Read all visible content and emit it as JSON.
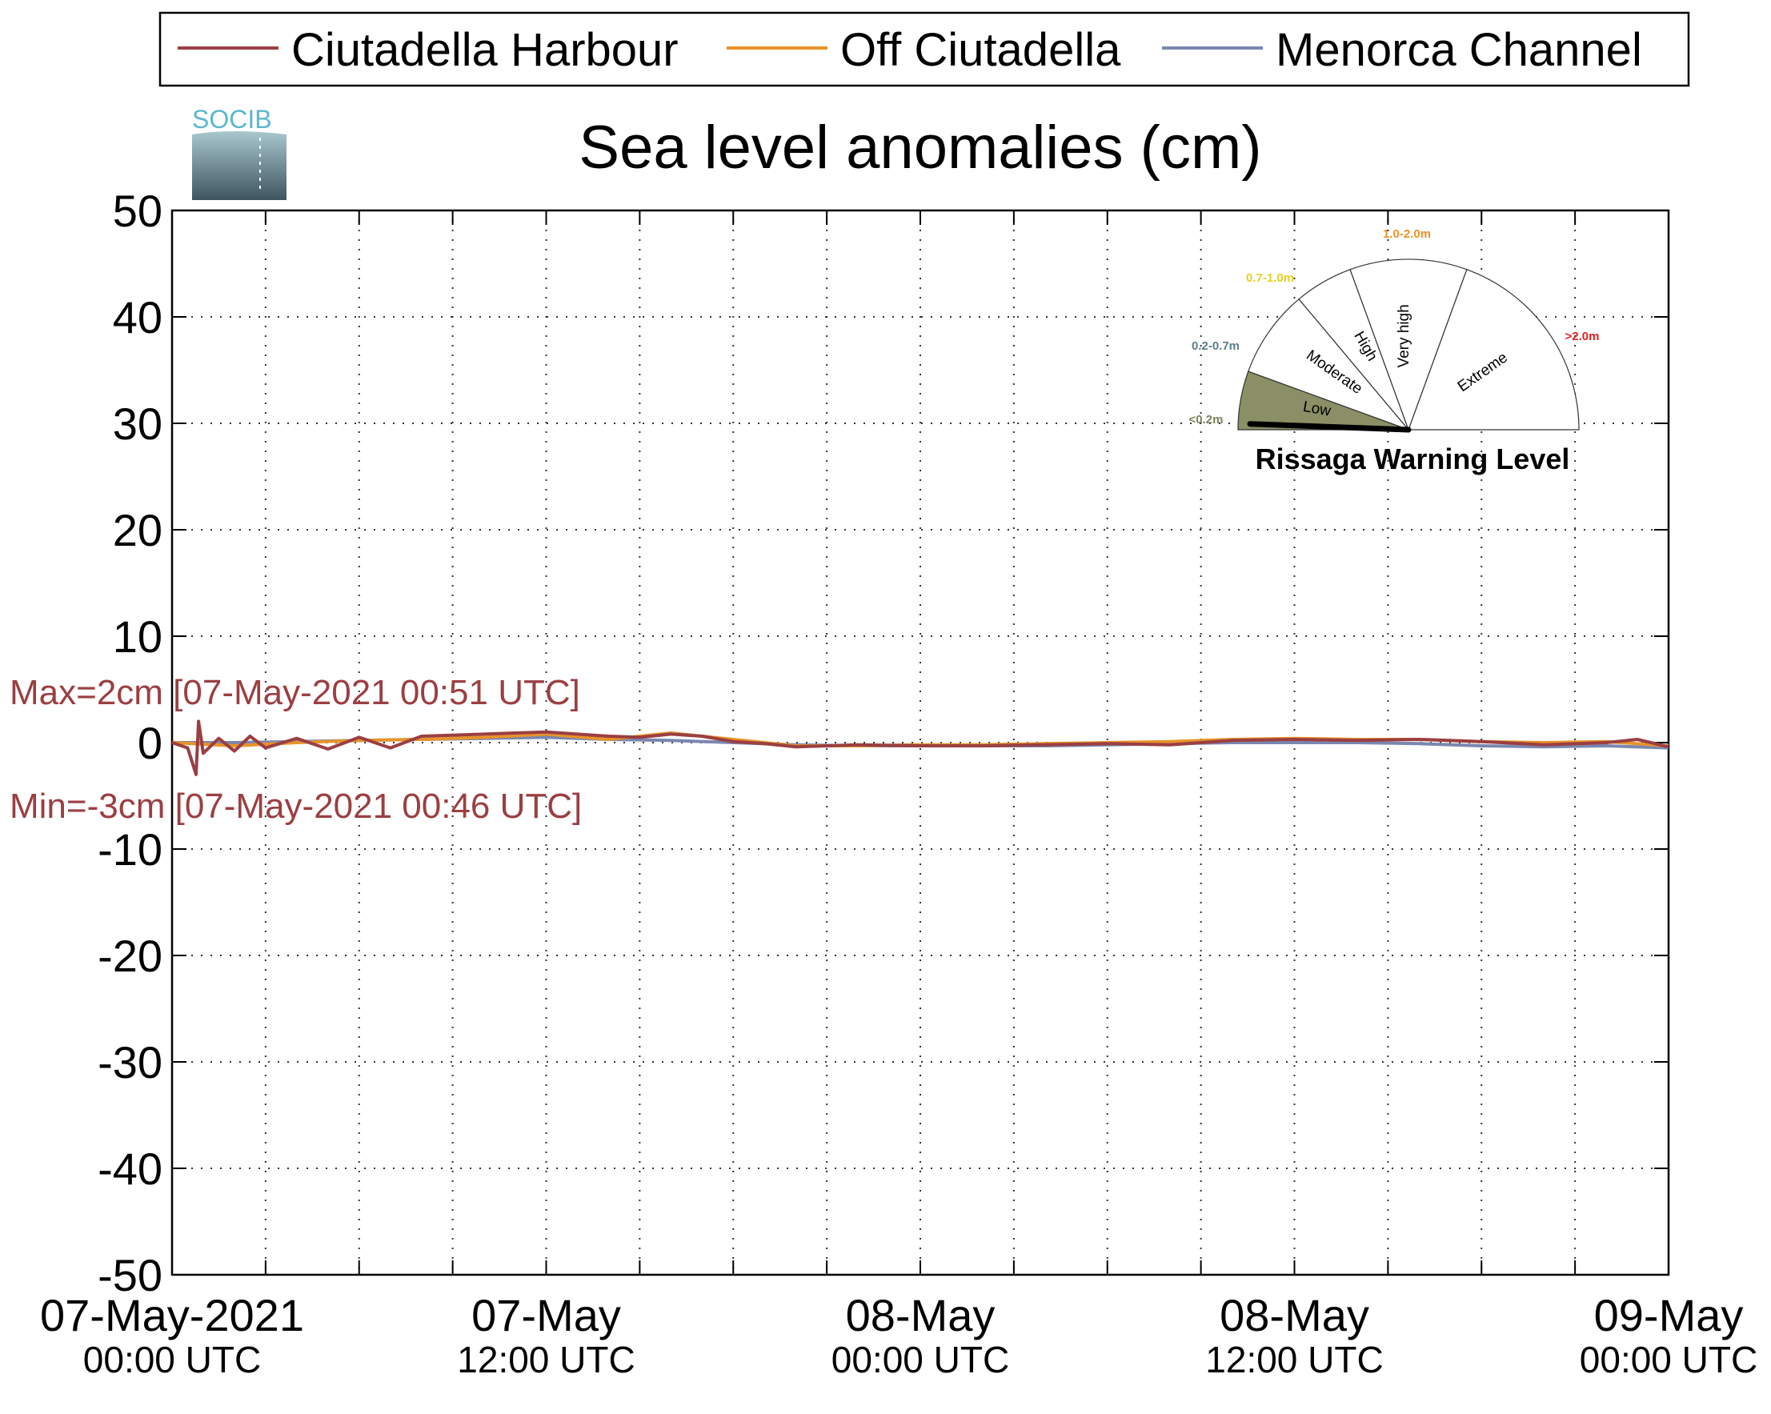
{
  "chart_data": {
    "type": "line",
    "title": "Sea level anomalies (cm)",
    "xlabel": "",
    "ylabel": "",
    "ylim": [
      -50,
      50
    ],
    "yticks": [
      50,
      40,
      30,
      20,
      10,
      0,
      -10,
      -20,
      -30,
      -40,
      -50
    ],
    "xlim": [
      "2021-05-07T00:00Z",
      "2021-05-09T00:00Z"
    ],
    "xticks": [
      {
        "t": "2021-05-07T00:00Z",
        "label": "07-May-2021",
        "sub": "00:00 UTC"
      },
      {
        "t": "2021-05-07T12:00Z",
        "label": "07-May",
        "sub": "12:00 UTC"
      },
      {
        "t": "2021-05-08T00:00Z",
        "label": "08-May",
        "sub": "00:00 UTC"
      },
      {
        "t": "2021-05-08T12:00Z",
        "label": "08-May",
        "sub": "12:00 UTC"
      },
      {
        "t": "2021-05-09T00:00Z",
        "label": "09-May",
        "sub": "00:00 UTC"
      }
    ],
    "grid": true,
    "legend_position": "top",
    "series": [
      {
        "name": "Ciutadella Harbour",
        "color": "#9b3f42",
        "hours": [
          0,
          0.5,
          0.77,
          0.85,
          1,
          1.5,
          2,
          2.5,
          3,
          4,
          5,
          6,
          7,
          8,
          9,
          10,
          11,
          12,
          13,
          14,
          15,
          16,
          17,
          18,
          19,
          20,
          21,
          22,
          24,
          26,
          28,
          30,
          32,
          34,
          36,
          38,
          40,
          42,
          44,
          46,
          47,
          48
        ],
        "values": [
          0,
          -0.5,
          -3,
          2,
          -1,
          0.4,
          -0.8,
          0.6,
          -0.5,
          0.4,
          -0.6,
          0.5,
          -0.5,
          0.6,
          0.7,
          0.8,
          0.9,
          1.0,
          0.8,
          0.6,
          0.5,
          0.8,
          0.6,
          0.1,
          -0.1,
          -0.4,
          -0.3,
          -0.2,
          -0.3,
          -0.3,
          -0.2,
          -0.1,
          -0.2,
          0.2,
          0.3,
          0.2,
          0.3,
          0.1,
          -0.2,
          0,
          0.3,
          -0.4
        ]
      },
      {
        "name": "Off Ciutadella",
        "color": "#e8932a",
        "hours": [
          0,
          2,
          4,
          6,
          8,
          10,
          12,
          14,
          16,
          18,
          20,
          22,
          24,
          26,
          28,
          30,
          32,
          34,
          36,
          38,
          40,
          42,
          44,
          46,
          48
        ],
        "values": [
          0,
          -0.3,
          0,
          0.2,
          0.3,
          0.5,
          0.8,
          0.3,
          0.9,
          0.3,
          -0.3,
          -0.3,
          -0.2,
          -0.2,
          -0.1,
          0,
          0.1,
          0.3,
          0.4,
          0.3,
          0.3,
          0.1,
          0,
          0.1,
          -0.3
        ]
      },
      {
        "name": "Menorca Channel",
        "color": "#7a87b0",
        "hours": [
          0,
          2,
          4,
          6,
          8,
          10,
          12,
          14,
          16,
          18,
          20,
          22,
          24,
          26,
          28,
          30,
          32,
          34,
          36,
          38,
          40,
          42,
          44,
          46,
          48
        ],
        "values": [
          0,
          0,
          0.1,
          0.2,
          0.3,
          0.4,
          0.5,
          0.3,
          0.2,
          0,
          -0.2,
          -0.3,
          -0.3,
          -0.3,
          -0.3,
          -0.2,
          -0.1,
          0,
          0,
          0,
          -0.1,
          -0.3,
          -0.4,
          -0.3,
          -0.5
        ]
      }
    ],
    "annotations": {
      "max": "Max=2cm [07-May-2021 00:51 UTC]",
      "min": "Min=-3cm [07-May-2021 00:46 UTC]"
    }
  },
  "logo": {
    "text": "SOCIB"
  },
  "gauge": {
    "title": "Rissaga Warning Level",
    "current_level": "Low",
    "current_fraction_of_low_band": 0.35,
    "sectors": [
      {
        "label": "Low",
        "range": "<0.2m",
        "range_color": "#7d8257",
        "fill": "#8a8f66",
        "active": true
      },
      {
        "label": "Moderate",
        "range": "0.2-0.7m",
        "range_color": "#5c7e8a",
        "fill": "#ffffff",
        "active": false
      },
      {
        "label": "High",
        "range": "0.7-1.0m",
        "range_color": "#e8d020",
        "fill": "#ffffff",
        "active": false
      },
      {
        "label": "Very high",
        "range": "1.0-2.0m",
        "range_color": "#e8932a",
        "fill": "#ffffff",
        "active": false
      },
      {
        "label": "Extreme",
        "range": ">2.0m",
        "range_color": "#e02020",
        "fill": "#ffffff",
        "active": false
      }
    ]
  }
}
